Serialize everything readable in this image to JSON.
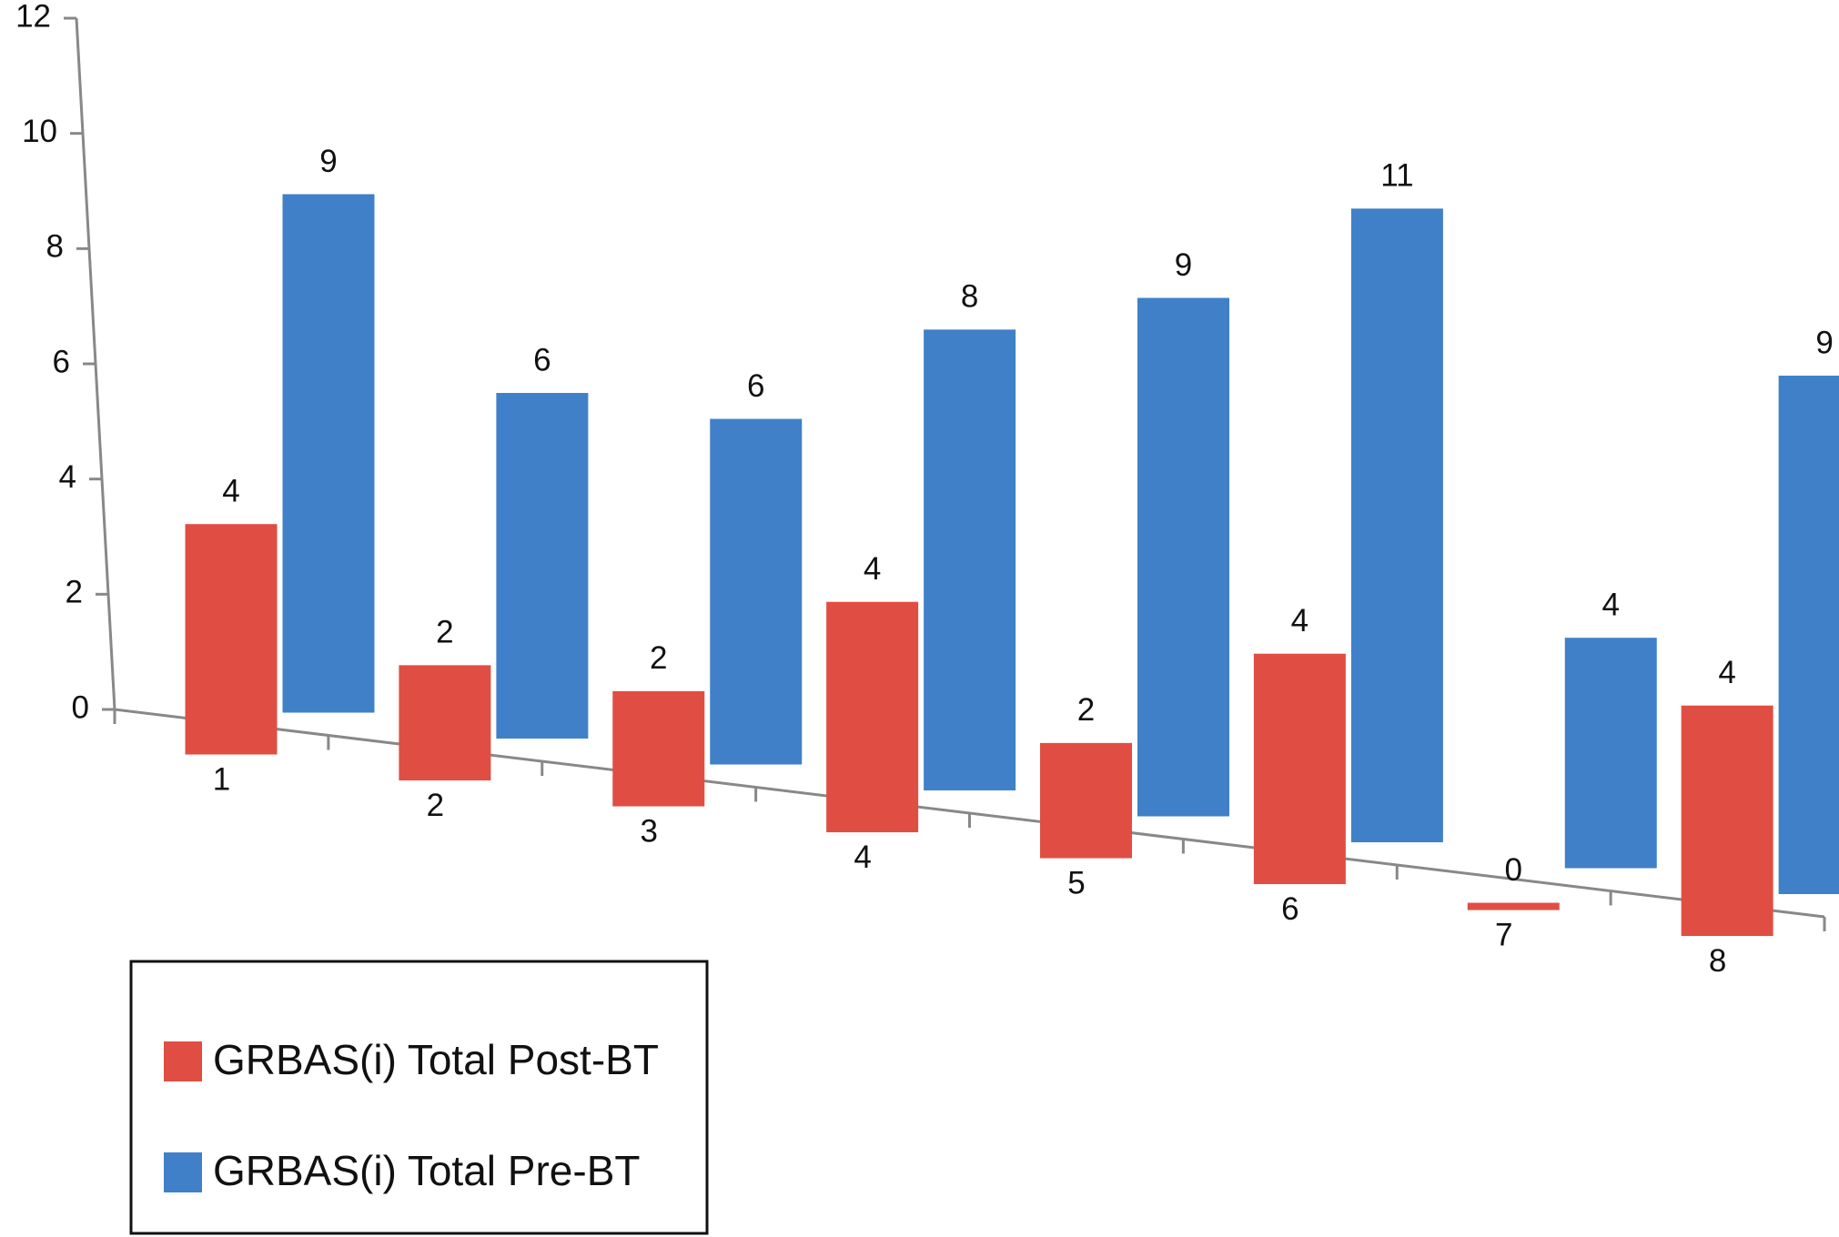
{
  "chart_data": {
    "type": "bar",
    "categories": [
      "1",
      "2",
      "3",
      "4",
      "5",
      "6",
      "7",
      "8"
    ],
    "series": [
      {
        "name": "GRBAS(i) Total Post-BT",
        "color": "#e04e43",
        "values": [
          4,
          2,
          2,
          4,
          2,
          4,
          0,
          4
        ]
      },
      {
        "name": "GRBAS(i) Total Pre-BT",
        "color": "#4080c8",
        "values": [
          9,
          6,
          6,
          8,
          9,
          11,
          4,
          9
        ]
      }
    ],
    "ylim": [
      0,
      12
    ],
    "yticks": [
      0,
      2,
      4,
      6,
      8,
      10,
      12
    ],
    "legend": "lower left",
    "data_labels": true
  }
}
